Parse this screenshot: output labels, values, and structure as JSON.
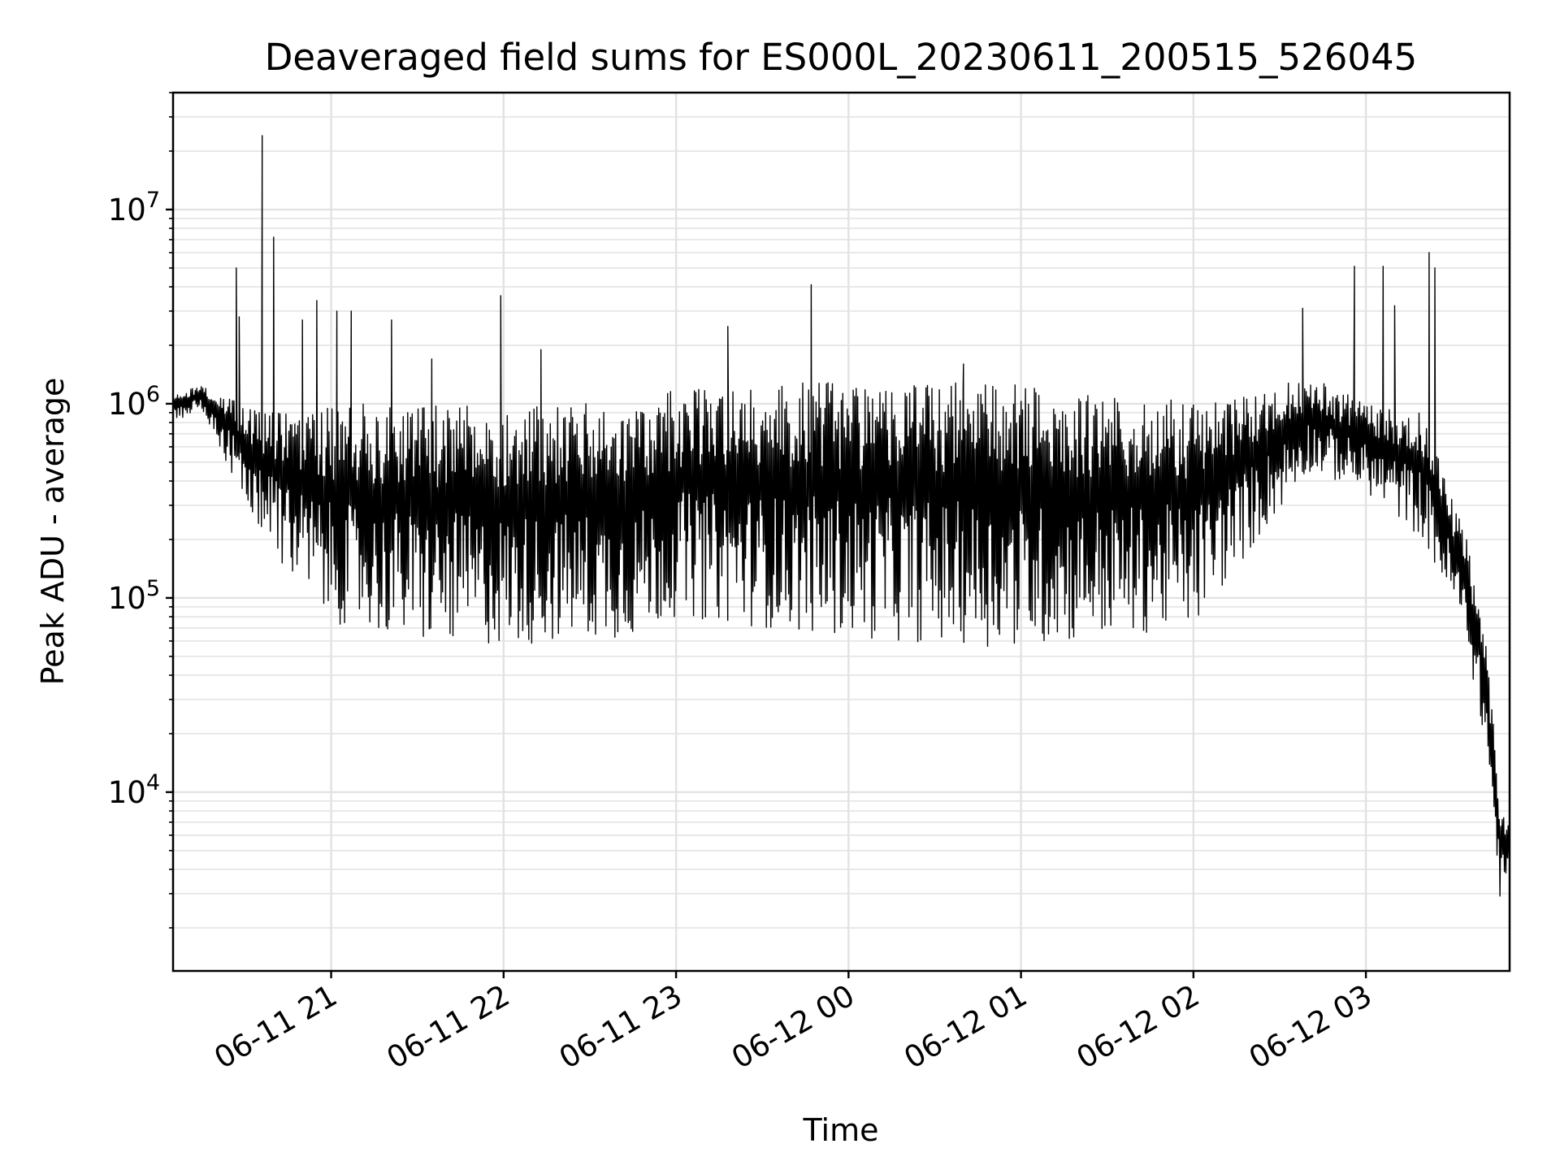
{
  "chart_data": {
    "type": "line",
    "title": "Deaveraged field sums for ES000L_20230611_200515_526045",
    "xlabel": "Time",
    "ylabel": "Peak ADU - average",
    "x_scale": "time",
    "y_scale": "log",
    "xlim": [
      "2023-06-11 20:05",
      "2023-06-12 03:50"
    ],
    "ylim": [
      1200,
      40000000
    ],
    "grid": true,
    "x_ticks": [
      {
        "value": "2023-06-11 21:00",
        "label": "06-11 21"
      },
      {
        "value": "2023-06-11 22:00",
        "label": "06-11 22"
      },
      {
        "value": "2023-06-11 23:00",
        "label": "06-11 23"
      },
      {
        "value": "2023-06-12 00:00",
        "label": "06-12 00"
      },
      {
        "value": "2023-06-12 01:00",
        "label": "06-12 01"
      },
      {
        "value": "2023-06-12 02:00",
        "label": "06-12 02"
      },
      {
        "value": "2023-06-12 03:00",
        "label": "06-12 03"
      }
    ],
    "y_ticks": [
      {
        "value": 10000,
        "base": "10",
        "exp": "4"
      },
      {
        "value": 100000,
        "base": "10",
        "exp": "5"
      },
      {
        "value": 1000000,
        "base": "10",
        "exp": "6"
      },
      {
        "value": 10000000,
        "base": "10",
        "exp": "7"
      }
    ],
    "series": [
      {
        "color": "#000000",
        "envelope_upper": [
          {
            "x": "2023-06-11 20:05",
            "y": 1100000
          },
          {
            "x": "2023-06-11 20:15",
            "y": 1250000
          },
          {
            "x": "2023-06-11 20:25",
            "y": 1050000
          },
          {
            "x": "2023-06-11 20:40",
            "y": 900000
          },
          {
            "x": "2023-06-11 21:00",
            "y": 1000000
          },
          {
            "x": "2023-06-11 22:00",
            "y": 1000000
          },
          {
            "x": "2023-06-11 22:50",
            "y": 1000000
          },
          {
            "x": "2023-06-11 23:00",
            "y": 1200000
          },
          {
            "x": "2023-06-11 23:30",
            "y": 1250000
          },
          {
            "x": "2023-06-12 00:00",
            "y": 1350000
          },
          {
            "x": "2023-06-12 01:00",
            "y": 1250000
          },
          {
            "x": "2023-06-12 01:45",
            "y": 1050000
          },
          {
            "x": "2023-06-12 02:15",
            "y": 1050000
          },
          {
            "x": "2023-06-12 02:40",
            "y": 1400000
          },
          {
            "x": "2023-06-12 03:00",
            "y": 1000000
          },
          {
            "x": "2023-06-12 03:20",
            "y": 900000
          },
          {
            "x": "2023-06-12 03:35",
            "y": 200000
          },
          {
            "x": "2023-06-12 03:42",
            "y": 60000
          },
          {
            "x": "2023-06-12 03:47",
            "y": 8000
          },
          {
            "x": "2023-06-12 03:50",
            "y": 7000
          }
        ],
        "envelope_lower": [
          {
            "x": "2023-06-11 20:05",
            "y": 800000
          },
          {
            "x": "2023-06-11 20:15",
            "y": 950000
          },
          {
            "x": "2023-06-11 20:25",
            "y": 450000
          },
          {
            "x": "2023-06-11 20:35",
            "y": 220000
          },
          {
            "x": "2023-06-11 20:45",
            "y": 130000
          },
          {
            "x": "2023-06-11 21:00",
            "y": 75000
          },
          {
            "x": "2023-06-11 21:30",
            "y": 58000
          },
          {
            "x": "2023-06-11 22:00",
            "y": 56000
          },
          {
            "x": "2023-06-11 22:45",
            "y": 62000
          },
          {
            "x": "2023-06-11 23:00",
            "y": 80000
          },
          {
            "x": "2023-06-12 00:00",
            "y": 62000
          },
          {
            "x": "2023-06-12 01:00",
            "y": 55000
          },
          {
            "x": "2023-06-12 02:00",
            "y": 70000
          },
          {
            "x": "2023-06-12 02:40",
            "y": 450000
          },
          {
            "x": "2023-06-12 03:00",
            "y": 350000
          },
          {
            "x": "2023-06-12 03:20",
            "y": 200000
          },
          {
            "x": "2023-06-12 03:35",
            "y": 60000
          },
          {
            "x": "2023-06-12 03:42",
            "y": 15000
          },
          {
            "x": "2023-06-12 03:47",
            "y": 2500
          },
          {
            "x": "2023-06-12 03:50",
            "y": 4000
          }
        ],
        "spikes": [
          {
            "x": "2023-06-11 20:36",
            "y": 24000000
          },
          {
            "x": "2023-06-11 20:40",
            "y": 7200000
          },
          {
            "x": "2023-06-11 20:27",
            "y": 5000000
          },
          {
            "x": "2023-06-11 20:28",
            "y": 2800000
          },
          {
            "x": "2023-06-11 20:55",
            "y": 3400000
          },
          {
            "x": "2023-06-11 20:50",
            "y": 2700000
          },
          {
            "x": "2023-06-11 21:02",
            "y": 3000000
          },
          {
            "x": "2023-06-11 21:07",
            "y": 3000000
          },
          {
            "x": "2023-06-11 21:21",
            "y": 2700000
          },
          {
            "x": "2023-06-11 21:35",
            "y": 1700000
          },
          {
            "x": "2023-06-11 21:59",
            "y": 3600000
          },
          {
            "x": "2023-06-11 22:13",
            "y": 1900000
          },
          {
            "x": "2023-06-11 23:18",
            "y": 2500000
          },
          {
            "x": "2023-06-11 23:47",
            "y": 4100000
          },
          {
            "x": "2023-06-12 00:40",
            "y": 1600000
          },
          {
            "x": "2023-06-12 02:38",
            "y": 3100000
          },
          {
            "x": "2023-06-12 02:56",
            "y": 5100000
          },
          {
            "x": "2023-06-12 03:06",
            "y": 5100000
          },
          {
            "x": "2023-06-12 03:10",
            "y": 3200000
          },
          {
            "x": "2023-06-12 03:22",
            "y": 6000000
          },
          {
            "x": "2023-06-12 03:24",
            "y": 5000000
          }
        ]
      }
    ]
  }
}
